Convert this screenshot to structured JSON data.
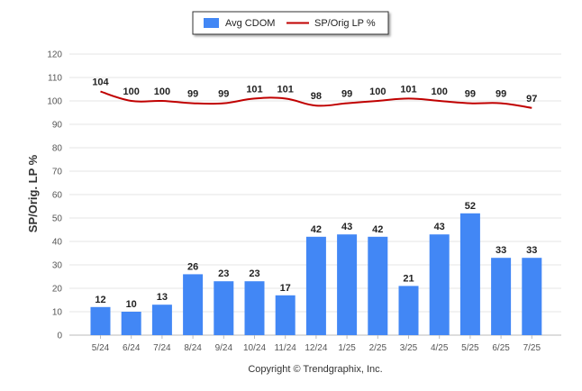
{
  "chart_data": {
    "type": "bar",
    "categories": [
      "5/24",
      "6/24",
      "7/24",
      "8/24",
      "9/24",
      "10/24",
      "11/24",
      "12/24",
      "1/25",
      "2/25",
      "3/25",
      "4/25",
      "5/25",
      "6/25",
      "7/25"
    ],
    "series": [
      {
        "name": "Avg CDOM",
        "type": "bar",
        "color": "#4287f5",
        "values": [
          12,
          10,
          13,
          26,
          23,
          23,
          17,
          42,
          43,
          42,
          21,
          43,
          52,
          33,
          33
        ]
      },
      {
        "name": "SP/Orig LP %",
        "type": "line",
        "color": "#c00000",
        "values": [
          104,
          100,
          100,
          99,
          99,
          101,
          101,
          98,
          99,
          100,
          101,
          100,
          99,
          99,
          97
        ]
      }
    ],
    "ylabel": "SP/Orig. LP %",
    "xlabel": "",
    "ylim": [
      0,
      120
    ],
    "yticks": [
      0,
      10,
      20,
      30,
      40,
      50,
      60,
      70,
      80,
      90,
      100,
      110,
      120
    ],
    "grid": true,
    "legend_position": "top-center",
    "data_labels": true
  },
  "footer": {
    "copyright": "Copyright © Trendgraphix, Inc."
  }
}
